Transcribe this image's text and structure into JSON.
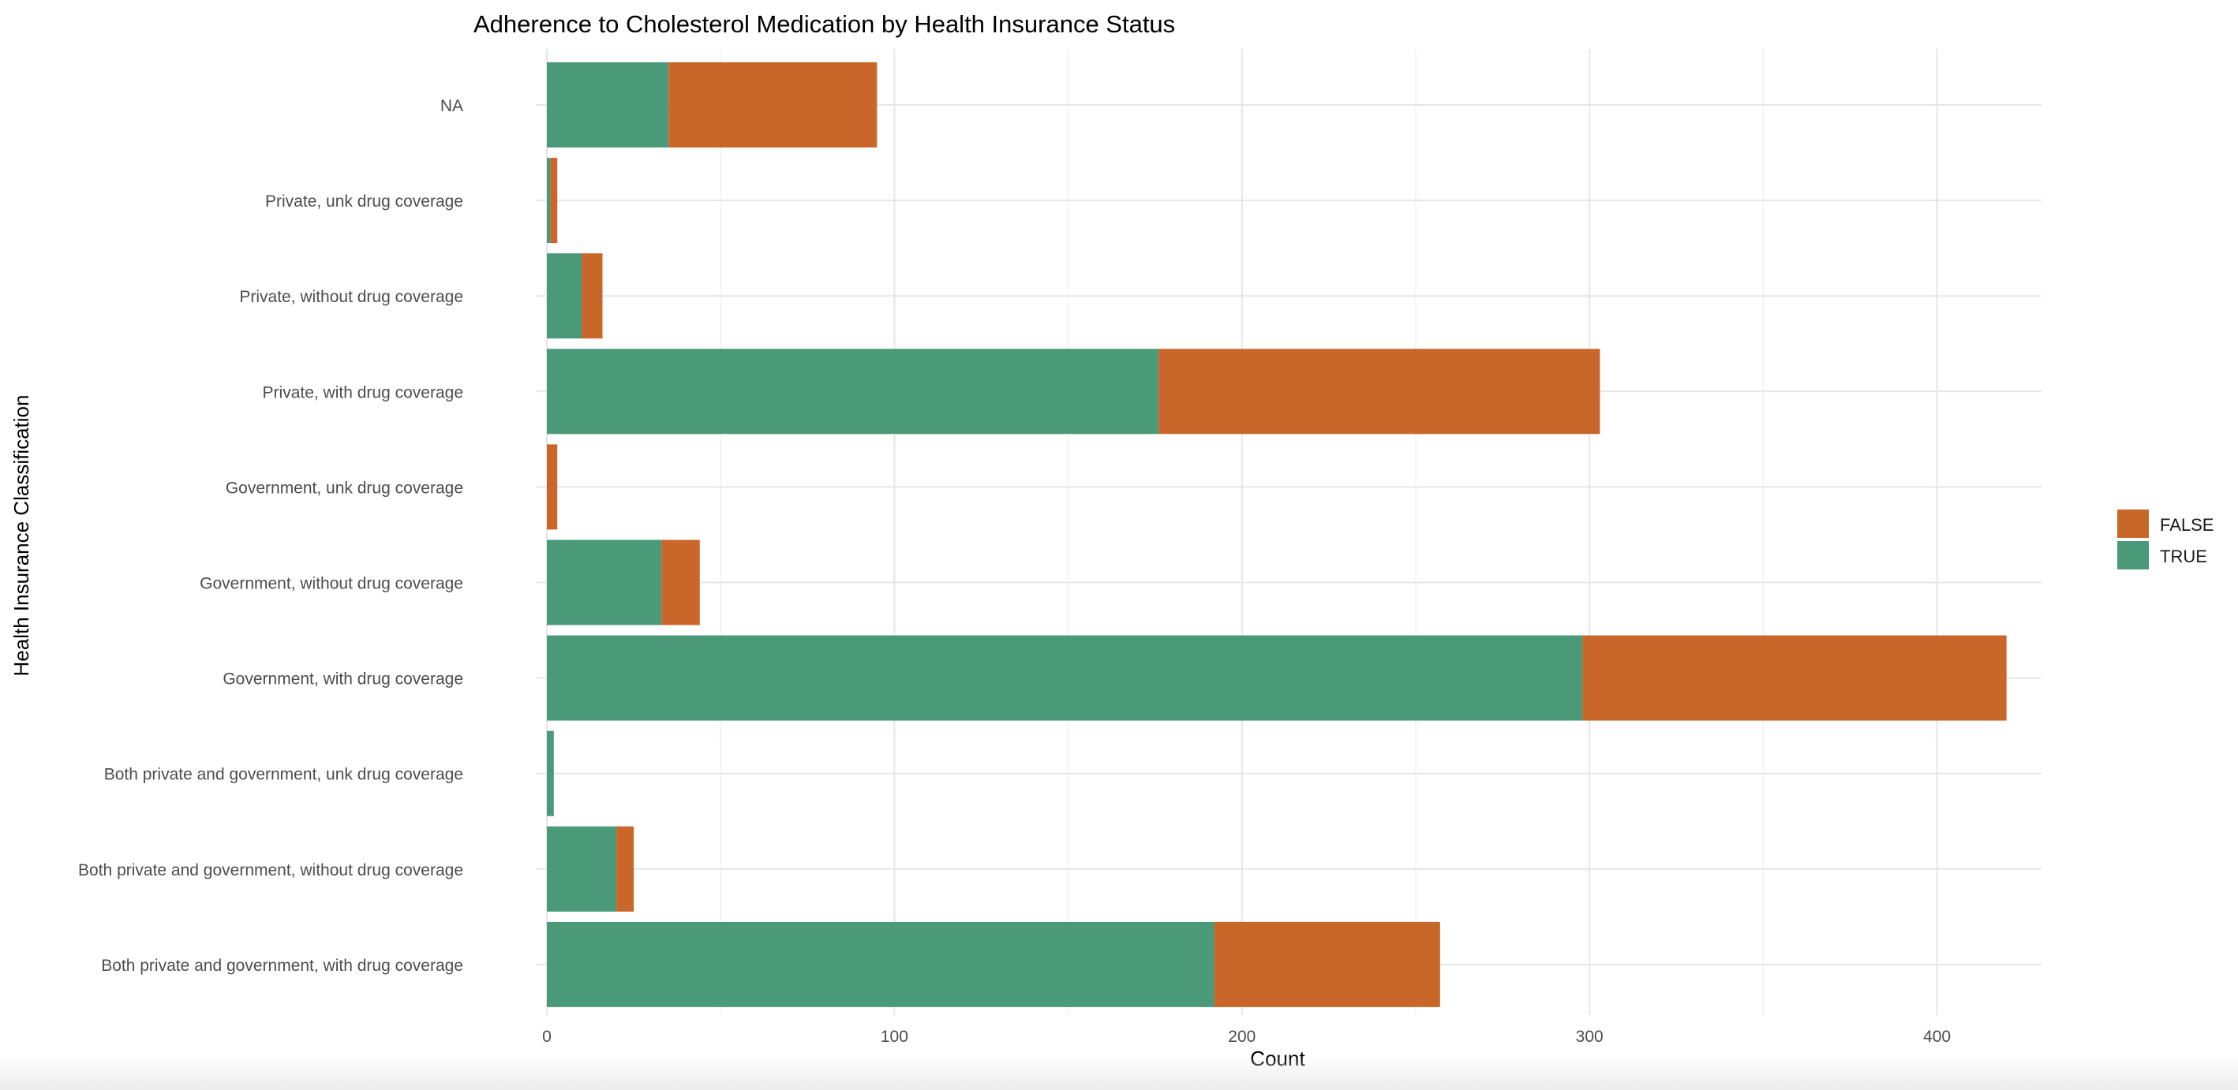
{
  "chart_data": {
    "type": "bar",
    "orientation": "horizontal",
    "stacked": true,
    "title": "Adherence to Cholesterol Medication by Health Insurance Status",
    "xlabel": "Count",
    "ylabel": "Health Insurance Classification",
    "categories": [
      "NA",
      "Private, unk drug coverage",
      "Private, without drug coverage",
      "Private, with drug coverage",
      "Government, unk drug coverage",
      "Government, without drug coverage",
      "Government, with drug coverage",
      "Both private and government, unk drug coverage",
      "Both private and government, without drug coverage",
      "Both private and government, with drug coverage"
    ],
    "series": [
      {
        "name": "TRUE",
        "color": "#4a9a7a",
        "values": [
          35,
          1,
          10,
          176,
          0,
          33,
          298,
          2,
          20,
          192
        ]
      },
      {
        "name": "FALSE",
        "color": "#c9672b",
        "values": [
          60,
          2,
          6,
          127,
          3,
          11,
          122,
          0,
          5,
          65
        ]
      }
    ],
    "legend_order": [
      "FALSE",
      "TRUE"
    ],
    "xlim": [
      0,
      441
    ],
    "xticks": [
      0,
      100,
      200,
      300,
      400
    ],
    "grid": true,
    "legend_position": "right"
  }
}
